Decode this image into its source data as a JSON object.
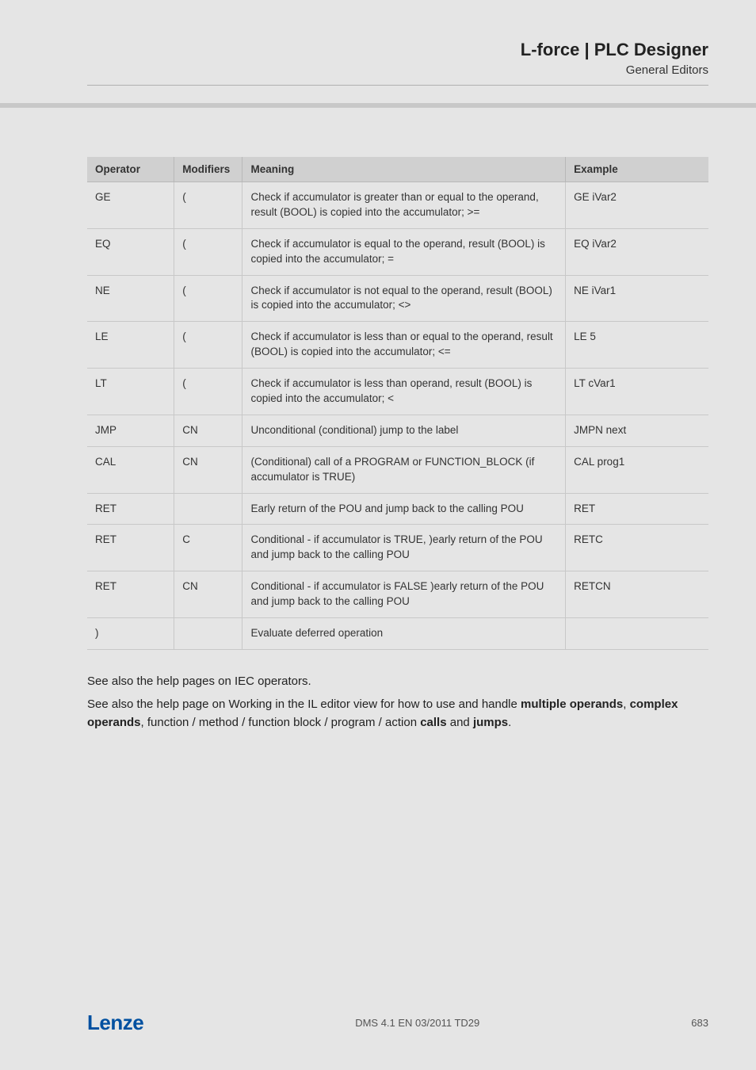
{
  "header": {
    "title": "L-force | PLC Designer",
    "subtitle": "General Editors"
  },
  "table": {
    "columns": [
      "Operator",
      "Modifiers",
      "Meaning",
      "Example"
    ],
    "column_widths_pct": [
      14,
      11,
      52,
      23
    ],
    "header_bg": "#d0d0d0",
    "border_color": "#c8c8c8",
    "font_size_pt": 10,
    "rows": [
      {
        "op": "GE",
        "mod": "(",
        "meaning": "Check if accumulator is greater than or equal to the operand, result (BOOL) is copied into the accumulator; >=",
        "example": "GE iVar2"
      },
      {
        "op": "EQ",
        "mod": "(",
        "meaning": "Check if accumulator is equal to the operand, result (BOOL) is copied into the accumulator; =",
        "example": "EQ iVar2"
      },
      {
        "op": "NE",
        "mod": "(",
        "meaning": "Check if accumulator is not equal to the operand, result (BOOL) is copied into the accumulator; <>",
        "example": "NE iVar1"
      },
      {
        "op": "LE",
        "mod": "(",
        "meaning": "Check if accumulator is less than or equal to the operand, result (BOOL) is copied into the accumulator; <=",
        "example": "LE 5"
      },
      {
        "op": "LT",
        "mod": "(",
        "meaning": "Check if accumulator is less than operand, result (BOOL) is copied into the accumulator; <",
        "example": "LT cVar1"
      },
      {
        "op": "JMP",
        "mod": "CN",
        "meaning": "Unconditional (conditional) jump to the label",
        "example": "JMPN next"
      },
      {
        "op": "CAL",
        "mod": "CN",
        "meaning": "(Conditional) call of a PROGRAM or FUNCTION_BLOCK (if accumulator is TRUE)",
        "example": "CAL prog1"
      },
      {
        "op": "RET",
        "mod": "",
        "meaning": "Early return of the POU and jump back to the calling POU",
        "example": "RET"
      },
      {
        "op": "RET",
        "mod": "C",
        "meaning": "Conditional - if accumulator is TRUE, )early return of the POU and jump back to the calling POU",
        "example": "RETC"
      },
      {
        "op": "RET",
        "mod": "CN",
        "meaning": "Conditional - if accumulator is FALSE )early return of the POU and jump back to the calling POU",
        "example": "RETCN"
      },
      {
        "op": ")",
        "mod": "",
        "meaning": "Evaluate deferred operation",
        "example": ""
      }
    ]
  },
  "body": {
    "p1": "See also the help pages on IEC operators.",
    "p2_pre": "See also the help page on Working in the IL editor view for how to use and handle ",
    "p2_b1": "multiple operands",
    "p2_sep1": ",  ",
    "p2_b2": "complex operands",
    "p2_mid": ", function / method / function block / program / action ",
    "p2_b3": "calls",
    "p2_sep2": " and ",
    "p2_b4": "jumps",
    "p2_end": "."
  },
  "footer": {
    "logo": "Lenze",
    "center": "DMS 4.1 EN 03/2011 TD29",
    "page": "683"
  },
  "colors": {
    "page_bg": "#e5e5e5",
    "text": "#333333",
    "brand": "#0050a0"
  }
}
